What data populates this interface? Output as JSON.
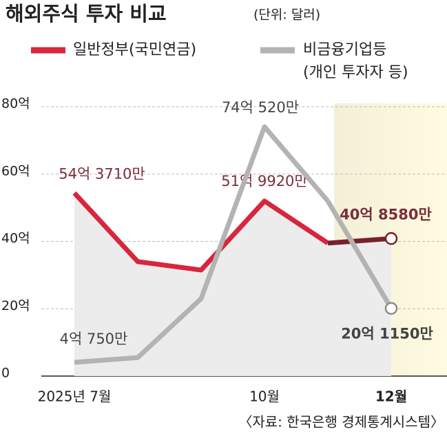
{
  "chart_data": {
    "type": "line",
    "title": "해외주식 투자 비교",
    "subtitle": "(단위: 달러)",
    "source": "〈자료: 한국은행 경제통계시스템〉",
    "categories": [
      "2025년 7월",
      null,
      null,
      "10월",
      null,
      "12월"
    ],
    "series": [
      {
        "name": "일반정부(국민연금)",
        "color": "#d7263d",
        "values": [
          54.371,
          34,
          31.5,
          51.992,
          39.5,
          40.858
        ],
        "value_labels": [
          "54억 3710만",
          null,
          null,
          "51억 9920만",
          null,
          "40억 8580만"
        ]
      },
      {
        "name": "비금융기업등",
        "legend_note": "(개인 투자자 등)",
        "color": "#b3b3b3",
        "values": [
          4.075,
          5.5,
          23,
          74.052,
          52,
          20.115
        ],
        "value_labels": [
          "4억 750만",
          null,
          null,
          "74억 520만",
          null,
          "20억 1150만"
        ]
      }
    ],
    "ylim": [
      0,
      80
    ],
    "yticks": [
      0,
      {
        "value": 20,
        "label": "20억"
      },
      {
        "value": 40,
        "label": "40억"
      },
      {
        "value": 60,
        "label": "60억"
      },
      {
        "value": 80,
        "label": "80억"
      }
    ],
    "grid": true
  }
}
